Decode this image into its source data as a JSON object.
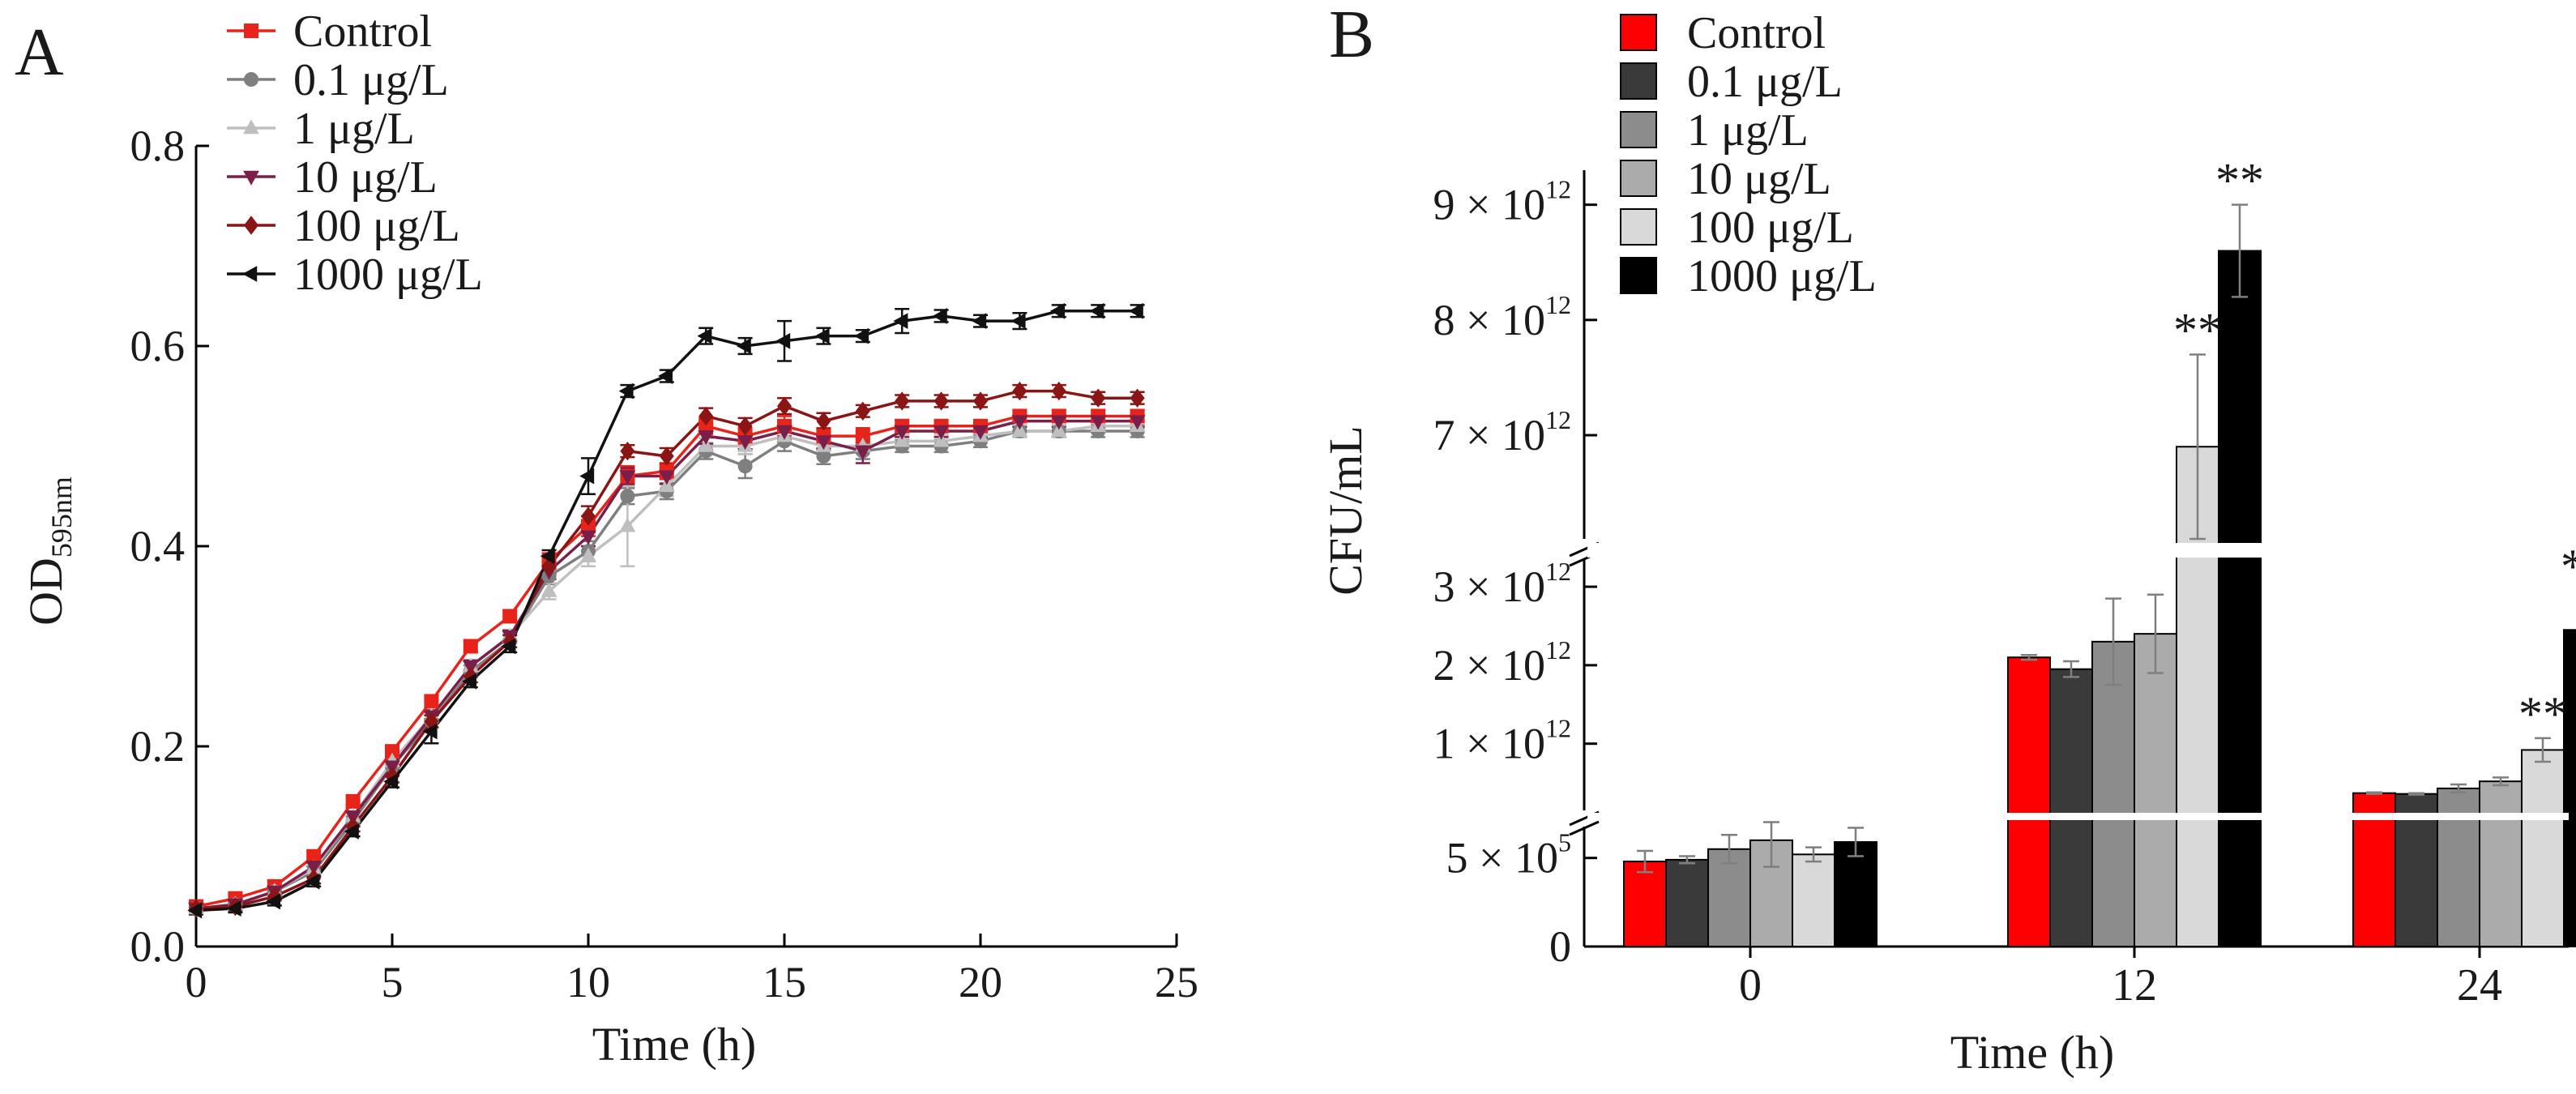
{
  "chart_data": [
    {
      "panel_label": "A",
      "type": "line",
      "xlabel": "Time (h)",
      "ylabel_main": "OD",
      "ylabel_sub": "595nm",
      "xlim": [
        0,
        25
      ],
      "ylim": [
        0,
        0.8
      ],
      "x_ticks": [
        "0",
        "5",
        "10",
        "15",
        "20",
        "25"
      ],
      "y_ticks": [
        "0.0",
        "0.2",
        "0.4",
        "0.6",
        "0.8"
      ],
      "grid": false,
      "legend_position": "top-left",
      "series": [
        {
          "name": "Control",
          "color": "#e8231a",
          "marker": "square",
          "x": [
            0,
            1,
            2,
            3,
            4,
            5,
            6,
            7,
            8,
            9,
            10,
            11,
            12,
            13,
            14,
            15,
            16,
            17,
            18,
            19,
            20,
            21,
            22,
            23,
            24
          ],
          "y": [
            0.04,
            0.048,
            0.06,
            0.09,
            0.145,
            0.195,
            0.245,
            0.3,
            0.33,
            0.385,
            0.42,
            0.47,
            0.475,
            0.52,
            0.51,
            0.52,
            0.51,
            0.51,
            0.52,
            0.52,
            0.52,
            0.53,
            0.53,
            0.53,
            0.53
          ],
          "err": [
            0.005,
            0.005,
            0.005,
            0.005,
            0.006,
            0.006,
            0.006,
            0.006,
            0.006,
            0.008,
            0.01,
            0.01,
            0.008,
            0.008,
            0.008,
            0.01,
            0.008,
            0.008,
            0.006,
            0.006,
            0.006,
            0.006,
            0.006,
            0.006,
            0.006
          ]
        },
        {
          "name": "0.1 μg/L",
          "color": "#7f7f7f",
          "marker": "circle",
          "x": [
            0,
            1,
            2,
            3,
            4,
            5,
            6,
            7,
            8,
            9,
            10,
            11,
            12,
            13,
            14,
            15,
            16,
            17,
            18,
            19,
            20,
            21,
            22,
            23,
            24
          ],
          "y": [
            0.038,
            0.042,
            0.055,
            0.075,
            0.125,
            0.18,
            0.225,
            0.275,
            0.305,
            0.37,
            0.395,
            0.45,
            0.455,
            0.495,
            0.48,
            0.505,
            0.49,
            0.495,
            0.5,
            0.5,
            0.505,
            0.515,
            0.515,
            0.515,
            0.515
          ],
          "err": [
            0.004,
            0.004,
            0.004,
            0.005,
            0.005,
            0.006,
            0.006,
            0.006,
            0.006,
            0.008,
            0.01,
            0.008,
            0.008,
            0.008,
            0.012,
            0.01,
            0.008,
            0.008,
            0.006,
            0.006,
            0.006,
            0.006,
            0.006,
            0.006,
            0.006
          ]
        },
        {
          "name": "1 μg/L",
          "color": "#bfbfbf",
          "marker": "triangle-up",
          "x": [
            0,
            1,
            2,
            3,
            4,
            5,
            6,
            7,
            8,
            9,
            10,
            11,
            12,
            13,
            14,
            15,
            16,
            17,
            18,
            19,
            20,
            21,
            22,
            23,
            24
          ],
          "y": [
            0.038,
            0.042,
            0.055,
            0.078,
            0.13,
            0.185,
            0.23,
            0.28,
            0.31,
            0.355,
            0.39,
            0.42,
            0.46,
            0.5,
            0.5,
            0.51,
            0.5,
            0.5,
            0.505,
            0.505,
            0.51,
            0.515,
            0.515,
            0.52,
            0.52
          ],
          "err": [
            0.004,
            0.004,
            0.004,
            0.005,
            0.005,
            0.006,
            0.006,
            0.006,
            0.006,
            0.008,
            0.01,
            0.04,
            0.01,
            0.008,
            0.008,
            0.008,
            0.008,
            0.008,
            0.006,
            0.006,
            0.006,
            0.006,
            0.006,
            0.006,
            0.006
          ]
        },
        {
          "name": "10 μg/L",
          "color": "#7a1f4a",
          "marker": "triangle-down",
          "x": [
            0,
            1,
            2,
            3,
            4,
            5,
            6,
            7,
            8,
            9,
            10,
            11,
            12,
            13,
            14,
            15,
            16,
            17,
            18,
            19,
            20,
            21,
            22,
            23,
            24
          ],
          "y": [
            0.038,
            0.042,
            0.055,
            0.08,
            0.13,
            0.18,
            0.23,
            0.28,
            0.31,
            0.375,
            0.41,
            0.47,
            0.47,
            0.51,
            0.505,
            0.515,
            0.505,
            0.495,
            0.515,
            0.515,
            0.515,
            0.525,
            0.525,
            0.525,
            0.525
          ],
          "err": [
            0.004,
            0.004,
            0.004,
            0.005,
            0.005,
            0.006,
            0.006,
            0.006,
            0.006,
            0.008,
            0.01,
            0.008,
            0.008,
            0.008,
            0.008,
            0.008,
            0.008,
            0.012,
            0.006,
            0.006,
            0.006,
            0.006,
            0.006,
            0.006,
            0.006
          ]
        },
        {
          "name": "100 μg/L",
          "color": "#8b1414",
          "marker": "diamond",
          "x": [
            0,
            1,
            2,
            3,
            4,
            5,
            6,
            7,
            8,
            9,
            10,
            11,
            12,
            13,
            14,
            15,
            16,
            17,
            18,
            19,
            20,
            21,
            22,
            23,
            24
          ],
          "y": [
            0.038,
            0.04,
            0.05,
            0.068,
            0.12,
            0.17,
            0.225,
            0.27,
            0.305,
            0.38,
            0.43,
            0.495,
            0.49,
            0.53,
            0.52,
            0.54,
            0.525,
            0.535,
            0.545,
            0.545,
            0.545,
            0.555,
            0.555,
            0.548,
            0.548
          ],
          "err": [
            0.004,
            0.004,
            0.004,
            0.005,
            0.005,
            0.006,
            0.006,
            0.006,
            0.006,
            0.008,
            0.01,
            0.006,
            0.008,
            0.008,
            0.008,
            0.008,
            0.008,
            0.006,
            0.006,
            0.006,
            0.006,
            0.006,
            0.006,
            0.006,
            0.006
          ]
        },
        {
          "name": "1000 μg/L",
          "color": "#111111",
          "marker": "triangle-left",
          "x": [
            0,
            1,
            2,
            3,
            4,
            5,
            6,
            7,
            8,
            9,
            10,
            11,
            12,
            13,
            14,
            15,
            16,
            17,
            18,
            19,
            20,
            21,
            22,
            23,
            24
          ],
          "y": [
            0.036,
            0.038,
            0.045,
            0.065,
            0.115,
            0.165,
            0.215,
            0.265,
            0.3,
            0.39,
            0.47,
            0.555,
            0.57,
            0.61,
            0.6,
            0.605,
            0.61,
            0.61,
            0.625,
            0.63,
            0.625,
            0.625,
            0.635,
            0.635,
            0.635
          ],
          "err": [
            0.004,
            0.004,
            0.004,
            0.005,
            0.005,
            0.006,
            0.012,
            0.006,
            0.006,
            0.006,
            0.018,
            0.006,
            0.006,
            0.008,
            0.008,
            0.02,
            0.008,
            0.006,
            0.012,
            0.006,
            0.006,
            0.008,
            0.006,
            0.006,
            0.006
          ]
        }
      ]
    },
    {
      "panel_label": "B",
      "type": "bar",
      "xlabel": "Time (h)",
      "ylabel": "CFU/mL",
      "categories": [
        "0",
        "12",
        "24"
      ],
      "y_scale": "broken axis (three segments)",
      "y_ticks": [
        {
          "mantissa": "0",
          "exponent": ""
        },
        {
          "mantissa": "5 × 10",
          "exponent": "5"
        },
        {
          "mantissa": "1 × 10",
          "exponent": "12"
        },
        {
          "mantissa": "2 × 10",
          "exponent": "12"
        },
        {
          "mantissa": "3 × 10",
          "exponent": "12"
        },
        {
          "mantissa": "7 × 10",
          "exponent": "12"
        },
        {
          "mantissa": "8 × 10",
          "exponent": "12"
        },
        {
          "mantissa": "9 × 10",
          "exponent": "12"
        }
      ],
      "grid": false,
      "legend_position": "top-center",
      "significance_label": "**",
      "series": [
        {
          "name": "Control",
          "color": "#ff0000",
          "values": [
            480000,
            2100000000000.0,
            370000000000.0
          ],
          "err": [
            60000,
            30000000000.0,
            10000000000.0
          ],
          "sig": [
            false,
            false,
            false
          ]
        },
        {
          "name": "0.1 μg/L",
          "color": "#3a3a3a",
          "values": [
            490000,
            1950000000000.0,
            360000000000.0
          ],
          "err": [
            20000,
            100000000000.0,
            10000000000.0
          ],
          "sig": [
            false,
            false,
            false
          ]
        },
        {
          "name": "1 μg/L",
          "color": "#8c8c8c",
          "values": [
            550000,
            2300000000000.0,
            430000000000.0
          ],
          "err": [
            80000,
            550000000000.0,
            50000000000.0
          ],
          "sig": [
            false,
            false,
            false
          ]
        },
        {
          "name": "10 μg/L",
          "color": "#ababab",
          "values": [
            600000,
            2400000000000.0,
            520000000000.0
          ],
          "err": [
            150000,
            500000000000.0,
            50000000000.0
          ],
          "sig": [
            false,
            false,
            false
          ]
        },
        {
          "name": "100 μg/L",
          "color": "#d9d9d9",
          "values": [
            520000,
            6900000000000.0,
            920000000000.0
          ],
          "err": [
            40000,
            800000000000.0,
            150000000000.0
          ],
          "sig": [
            false,
            true,
            true
          ]
        },
        {
          "name": "1000 μg/L",
          "color": "#000000",
          "values": [
            590000,
            8600000000000.0,
            2450000000000.0
          ],
          "err": [
            80000,
            400000000000.0,
            500000000000.0
          ],
          "sig": [
            false,
            true,
            true
          ]
        }
      ]
    }
  ]
}
